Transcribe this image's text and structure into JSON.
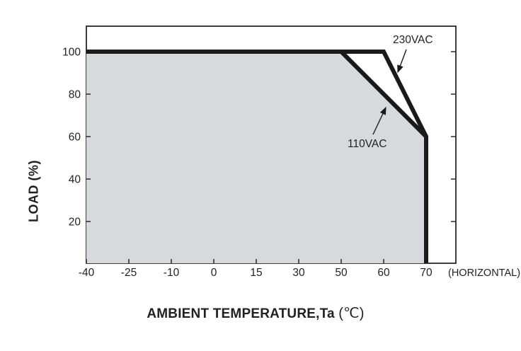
{
  "chart_data": {
    "type": "line",
    "title": "",
    "ylabel": "LOAD (%)",
    "xlabel_main": "AMBIENT TEMPERATURE,Ta",
    "xlabel_unit": "(℃)",
    "x_axis_note": "(HORIZONTAL)",
    "x_tick_labels": [
      "-40",
      "-25",
      "-10",
      "0",
      "15",
      "30",
      "50",
      "60",
      "70"
    ],
    "x_ticks": [
      -40,
      -25,
      -10,
      0,
      15,
      30,
      50,
      60,
      70
    ],
    "x_scale": "non-linear (ticks evenly spaced)",
    "y_ticks": [
      20,
      40,
      60,
      80,
      100
    ],
    "y_tick_labels": [
      "20",
      "40",
      "60",
      "80",
      "100"
    ],
    "ylim": [
      0,
      112
    ],
    "grid": false,
    "legend_position": "inline annotations with arrows",
    "series": [
      {
        "name": "230VAC",
        "points": [
          [
            -40,
            100
          ],
          [
            60,
            100
          ],
          [
            70,
            60
          ],
          [
            70,
            0
          ]
        ]
      },
      {
        "name": "110VAC",
        "points": [
          [
            -40,
            100
          ],
          [
            50,
            100
          ],
          [
            70,
            60
          ],
          [
            70,
            0
          ]
        ]
      }
    ],
    "shaded_region": {
      "under_series": "110VAC",
      "color": "#d4dade"
    },
    "colors": {
      "curve": "#1a1a1a",
      "frame": "#2a2a2a",
      "text": "#231f20",
      "fill": "#d4dade",
      "background": "#ffffff"
    }
  }
}
